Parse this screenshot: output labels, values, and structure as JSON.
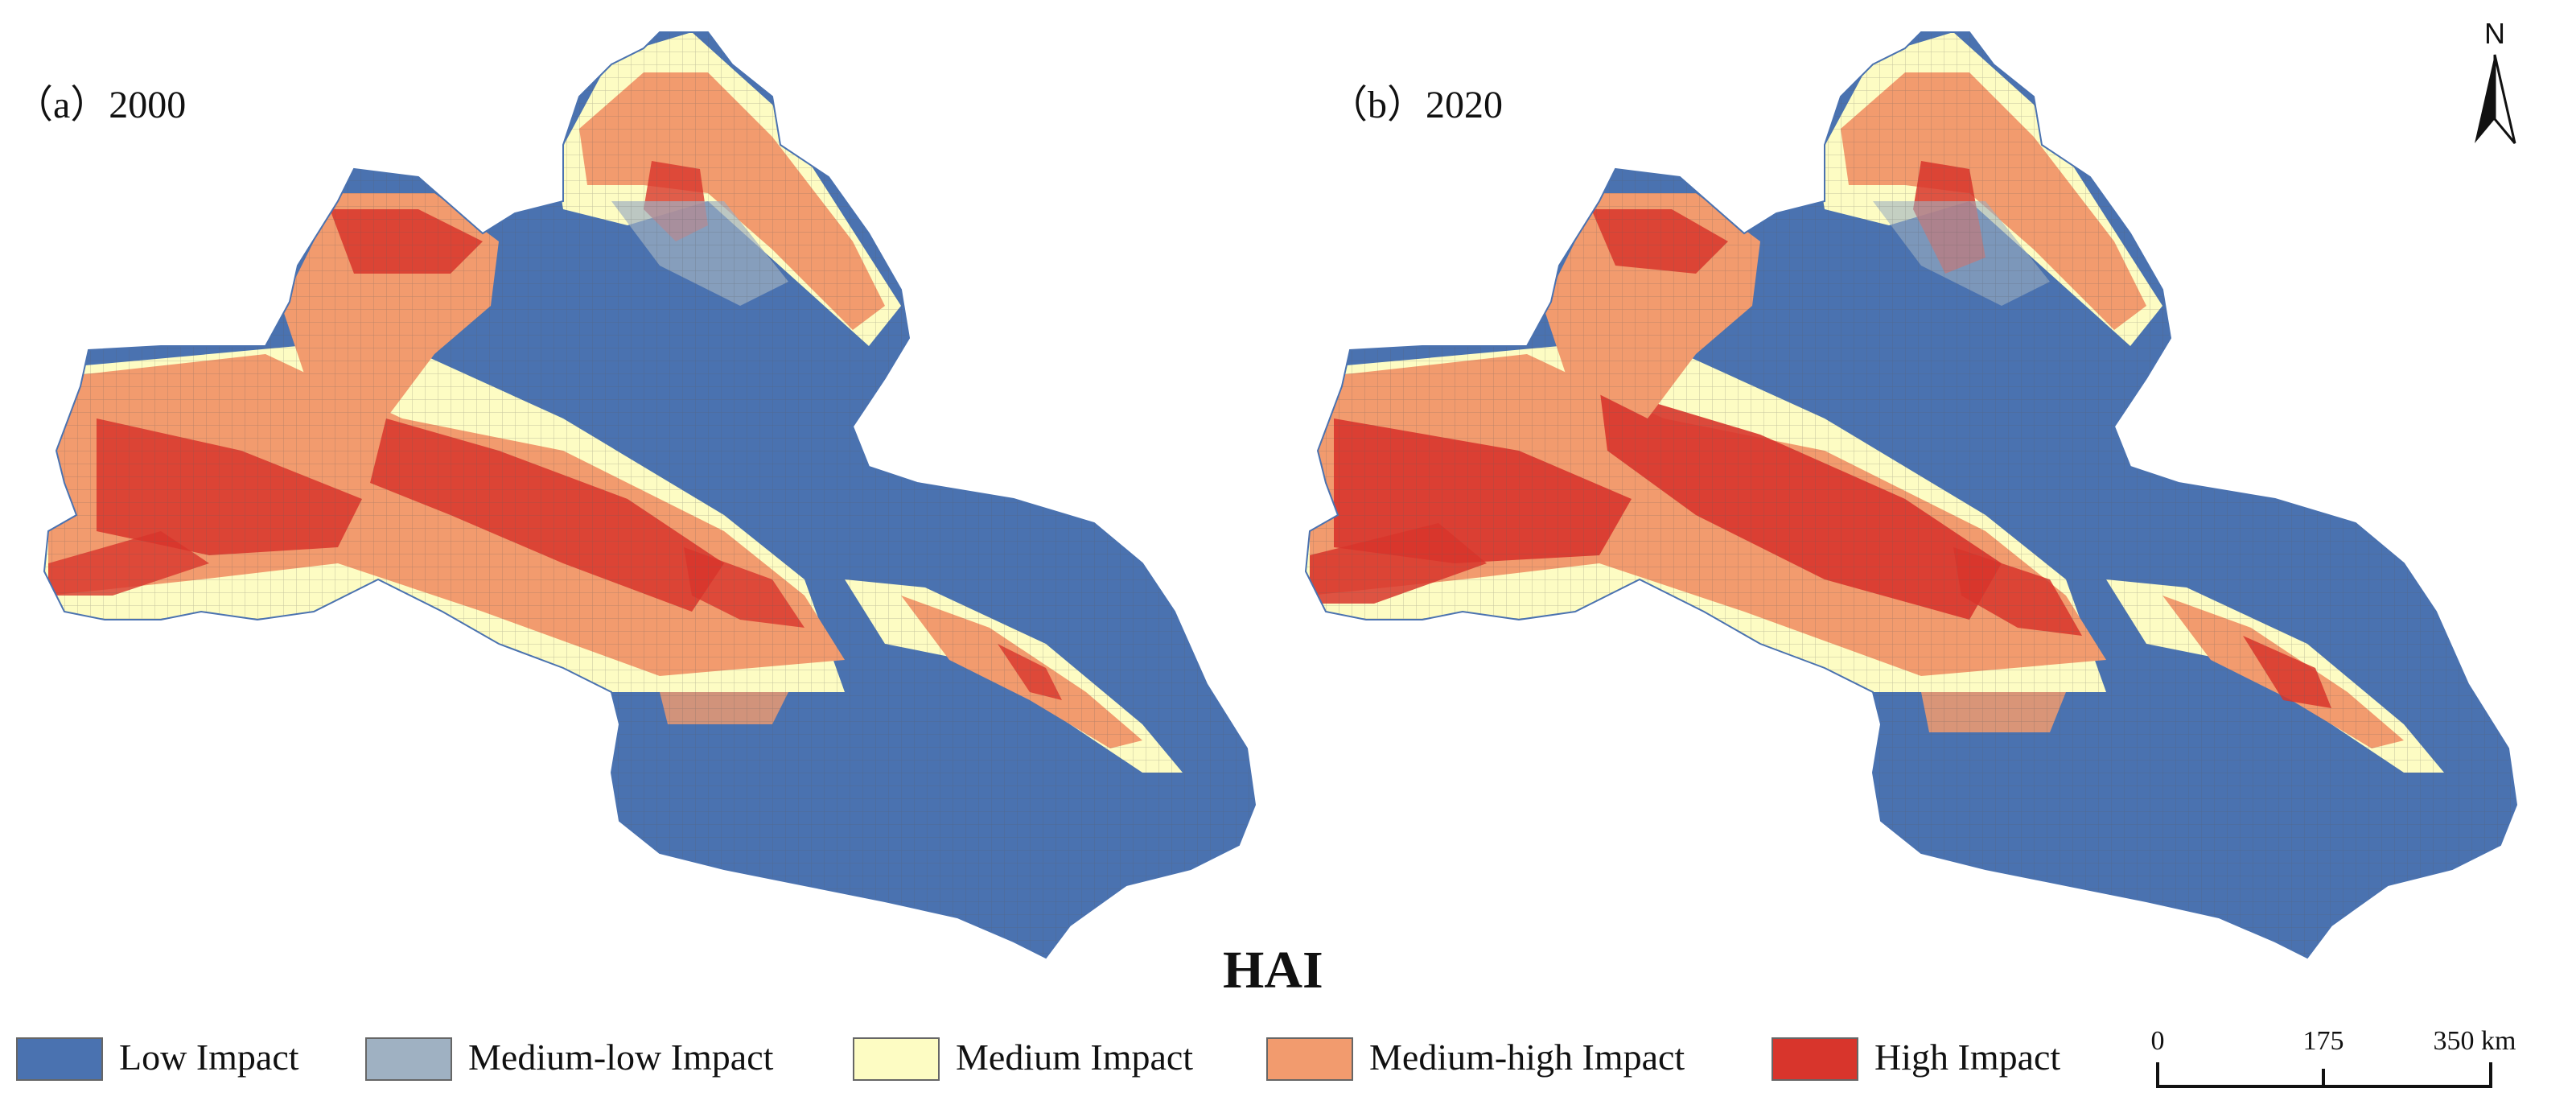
{
  "panels": [
    {
      "label": "（a）2000"
    },
    {
      "label": "（b）2020"
    }
  ],
  "title": "HAI",
  "legend": [
    {
      "label": "Low Impact",
      "color": "#4a72b0"
    },
    {
      "label": "Medium-low Impact",
      "color": "#9fb1c2"
    },
    {
      "label": "Medium Impact",
      "color": "#fdfcc3"
    },
    {
      "label": "Medium-high Impact",
      "color": "#f29b6e"
    },
    {
      "label": "High Impact",
      "color": "#d8352c"
    }
  ],
  "scale_bar": {
    "ticks": [
      "0",
      "175",
      "350 km"
    ]
  },
  "north_arrow": {
    "label": "N"
  }
}
